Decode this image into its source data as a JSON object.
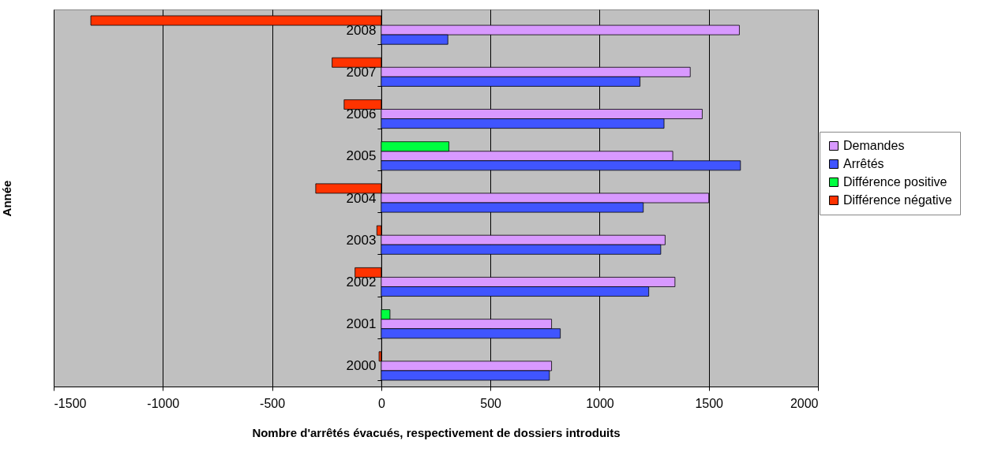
{
  "chart_data": {
    "type": "bar",
    "orientation": "horizontal",
    "xlabel": "Nombre d'arrêtés évacués, respectivement de dossiers introduits",
    "ylabel": "Année",
    "categories": [
      "2008",
      "2007",
      "2006",
      "2005",
      "2004",
      "2003",
      "2002",
      "2001",
      "2000"
    ],
    "series": [
      {
        "name": "Demandes",
        "color": "#d899ff",
        "values": [
          1640,
          1415,
          1470,
          1335,
          1500,
          1300,
          1345,
          780,
          780
        ]
      },
      {
        "name": "Arrêtés",
        "color": "#4055ff",
        "values": [
          305,
          1185,
          1295,
          1645,
          1200,
          1280,
          1225,
          820,
          770
        ]
      },
      {
        "name": "Différence positive",
        "color": "#00ff40",
        "values": [
          null,
          null,
          null,
          310,
          null,
          null,
          null,
          40,
          null
        ]
      },
      {
        "name": "Différence négative",
        "color": "#ff3300",
        "values": [
          -1330,
          -225,
          -170,
          null,
          -300,
          -20,
          -120,
          null,
          -10
        ]
      }
    ],
    "xlim": [
      -1500,
      2000
    ],
    "xticks": [
      -1500,
      -1000,
      -500,
      0,
      500,
      1000,
      1500,
      2000
    ],
    "grid": "x",
    "legend": "right"
  }
}
